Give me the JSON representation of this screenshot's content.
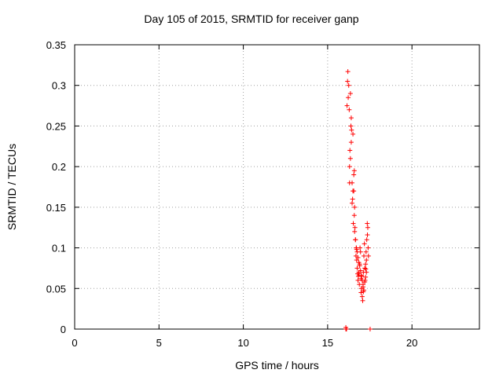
{
  "chart_data": {
    "type": "scatter",
    "title": "Day 105 of 2015, SRMTID for receiver ganp",
    "xlabel": "GPS time / hours",
    "ylabel": "SRMTID / TECUs",
    "xlim": [
      0,
      24
    ],
    "ylim": [
      0,
      0.35
    ],
    "x_ticks": [
      0,
      5,
      10,
      15,
      20
    ],
    "x_tick_labels": [
      "0",
      "5",
      "10",
      "15",
      "20"
    ],
    "y_ticks": [
      0,
      0.05,
      0.1,
      0.15,
      0.2,
      0.25,
      0.3,
      0.35
    ],
    "y_tick_labels": [
      "0",
      "0.05",
      "0.1",
      "0.15",
      "0.2",
      "0.25",
      "0.3",
      "0.35"
    ],
    "grid": true,
    "marker": "+",
    "series": [
      {
        "name": "SRMTID",
        "color": "#ff0000",
        "x": [
          16.08,
          16.12,
          16.15,
          16.18,
          16.2,
          16.22,
          16.25,
          16.28,
          16.3,
          16.32,
          16.35,
          16.38,
          16.4,
          16.42,
          16.45,
          16.48,
          16.5,
          16.52,
          16.55,
          16.58,
          16.6,
          16.62,
          16.65,
          16.68,
          16.7,
          16.72,
          16.75,
          16.78,
          16.8,
          16.82,
          16.85,
          16.88,
          16.9,
          16.92,
          16.95,
          16.98,
          17.0,
          17.02,
          17.05,
          17.08,
          17.1,
          17.12,
          17.15,
          17.18,
          17.2,
          17.22,
          17.25,
          17.28,
          17.3,
          17.32,
          17.35,
          17.38,
          17.4,
          17.42,
          16.3,
          16.35,
          16.4,
          16.5,
          16.55,
          16.6,
          16.65,
          16.7,
          16.75,
          16.8,
          16.85,
          16.9,
          16.95,
          17.0,
          17.05,
          17.1,
          17.15,
          17.2,
          17.25,
          17.3,
          16.45,
          16.58,
          16.72,
          16.86,
          16.98,
          17.12,
          17.26,
          17.36,
          16.08,
          17.52
        ],
        "y": [
          0.0,
          0.0,
          0.275,
          0.305,
          0.317,
          0.285,
          0.3,
          0.27,
          0.18,
          0.22,
          0.29,
          0.25,
          0.26,
          0.245,
          0.18,
          0.16,
          0.17,
          0.13,
          0.19,
          0.195,
          0.15,
          0.125,
          0.11,
          0.09,
          0.1,
          0.085,
          0.075,
          0.068,
          0.06,
          0.065,
          0.07,
          0.055,
          0.08,
          0.1,
          0.095,
          0.045,
          0.05,
          0.065,
          0.04,
          0.035,
          0.055,
          0.07,
          0.09,
          0.105,
          0.075,
          0.06,
          0.08,
          0.095,
          0.085,
          0.11,
          0.13,
          0.125,
          0.1,
          0.09,
          0.2,
          0.21,
          0.23,
          0.24,
          0.17,
          0.12,
          0.11,
          0.1,
          0.095,
          0.088,
          0.082,
          0.078,
          0.072,
          0.066,
          0.06,
          0.052,
          0.048,
          0.058,
          0.064,
          0.07,
          0.155,
          0.14,
          0.098,
          0.068,
          0.062,
          0.046,
          0.074,
          0.116,
          0.002,
          0.0
        ]
      }
    ]
  }
}
